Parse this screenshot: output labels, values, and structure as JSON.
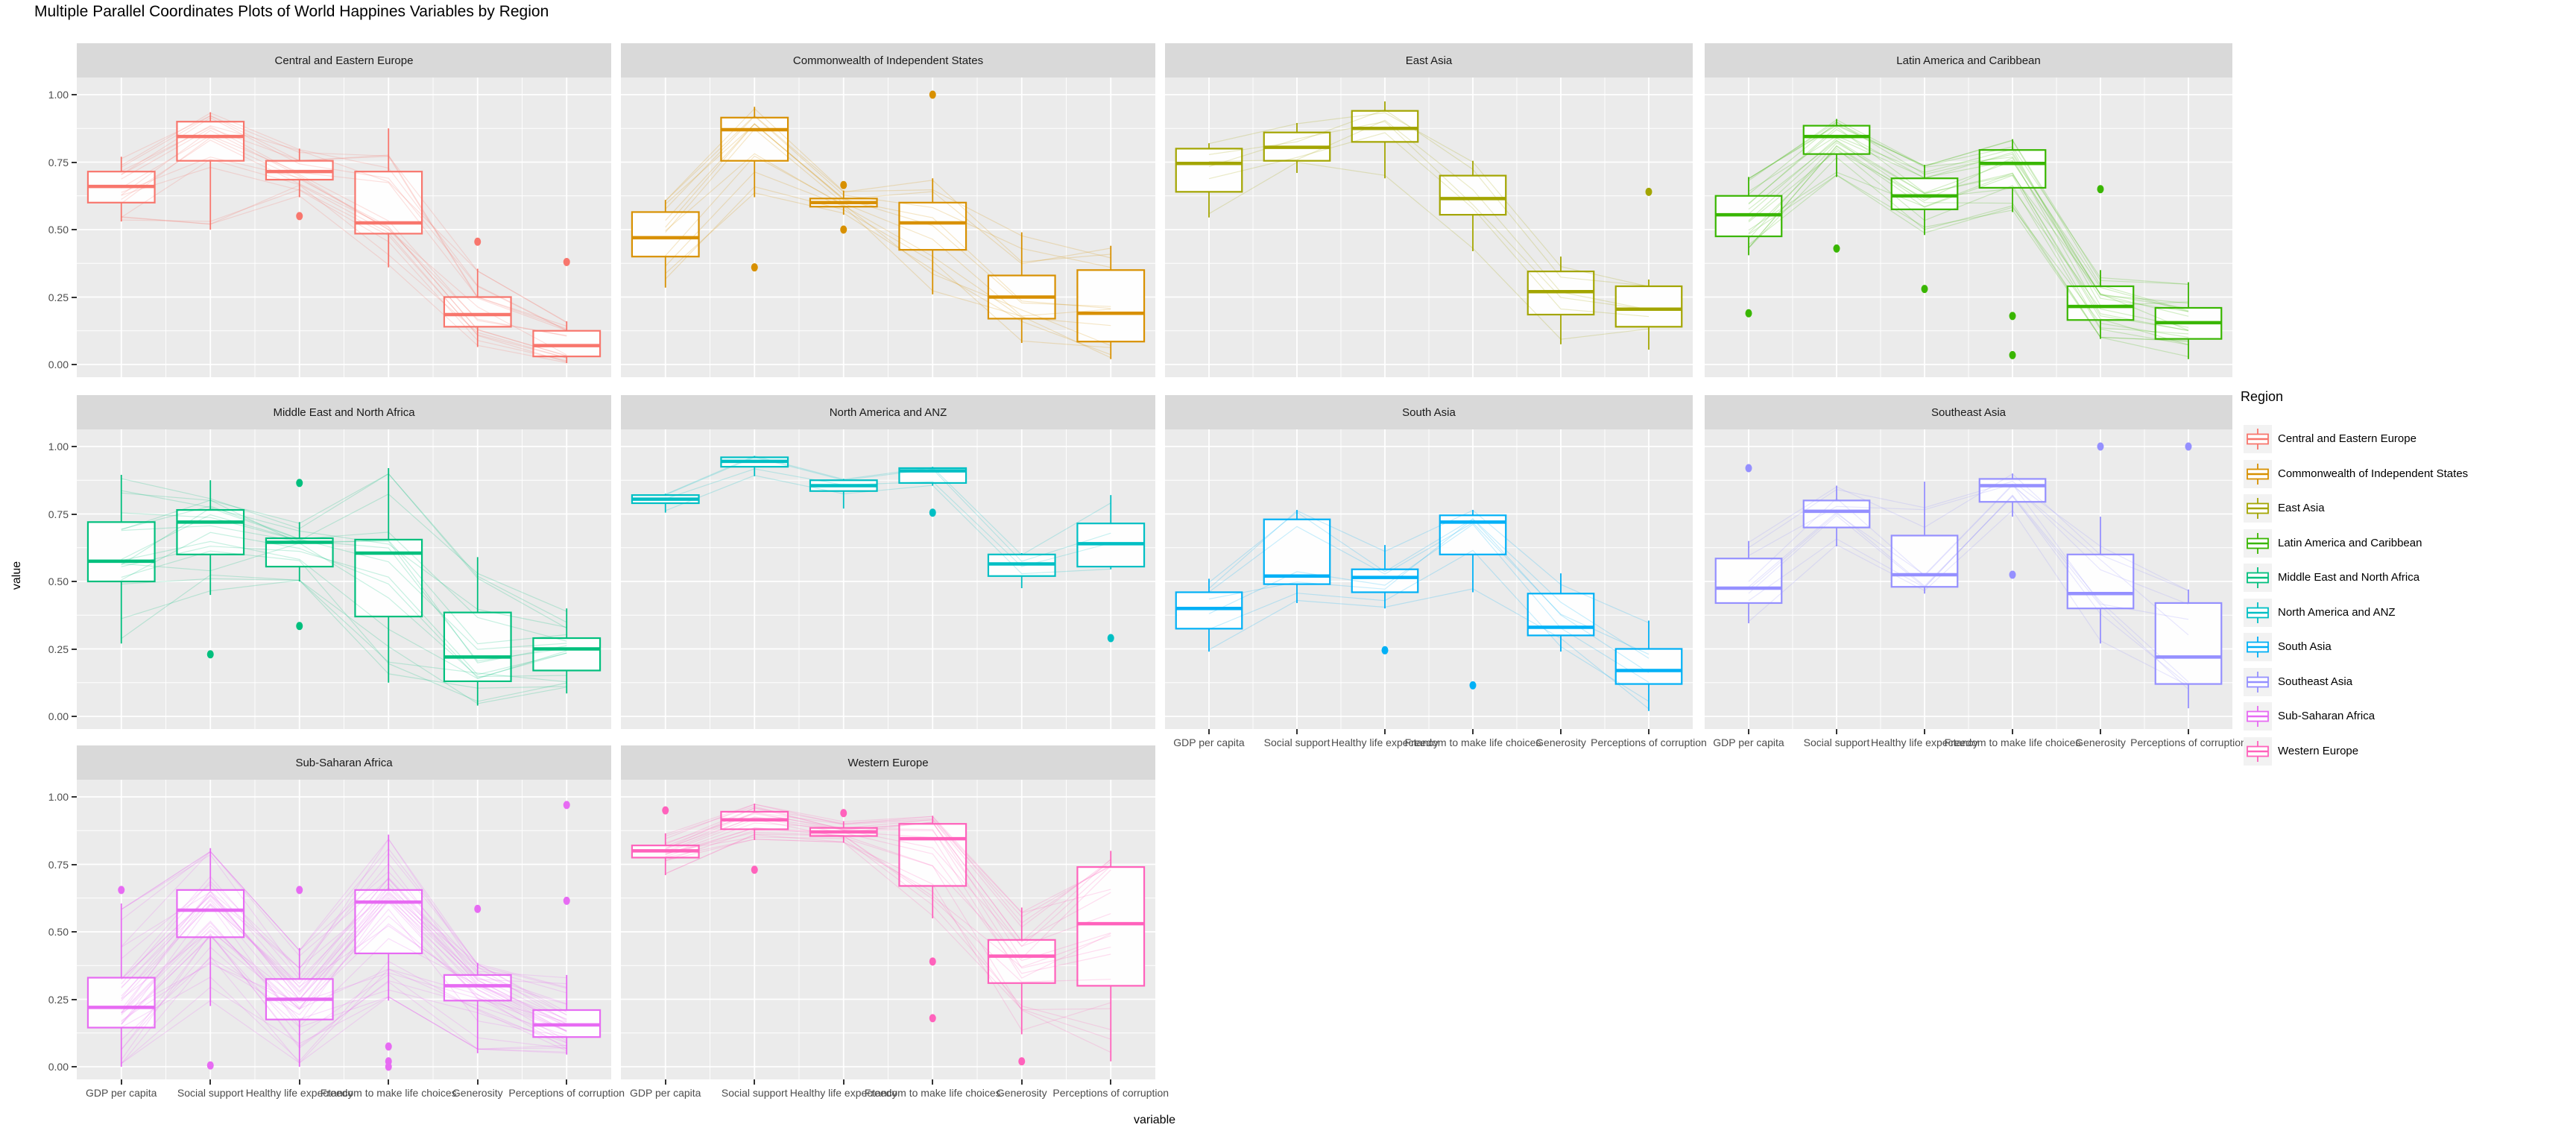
{
  "title": "Multiple Parallel Coordinates Plots of World Happines Variables by Region",
  "axes": {
    "y_title": "value",
    "x_title": "variable",
    "y_tick_labels": [
      "1.00",
      "0.75",
      "0.50",
      "0.25",
      "0.00"
    ],
    "y_tick_values": [
      1.0,
      0.75,
      0.5,
      0.25,
      0.0
    ],
    "x_categories": [
      "GDP per capita",
      "Social support",
      "Healthy life expectancy",
      "Freedom to make life choices",
      "Generosity",
      "Perceptions of corruption"
    ]
  },
  "legend": {
    "title": "Region",
    "entries": [
      {
        "label": "Central and Eastern Europe",
        "color": "#F8766D"
      },
      {
        "label": "Commonwealth of Independent States",
        "color": "#D89000"
      },
      {
        "label": "East Asia",
        "color": "#A3A500"
      },
      {
        "label": "Latin America and Caribbean",
        "color": "#39B600"
      },
      {
        "label": "Middle East and North Africa",
        "color": "#00BF7D"
      },
      {
        "label": "North America and ANZ",
        "color": "#00BFC4"
      },
      {
        "label": "South Asia",
        "color": "#00B0F6"
      },
      {
        "label": "Southeast Asia",
        "color": "#9590FF"
      },
      {
        "label": "Sub-Saharan Africa",
        "color": "#E76BF3"
      },
      {
        "label": "Western Europe",
        "color": "#FF62BC"
      }
    ]
  },
  "chart_data": {
    "type": "boxplot+parallel-coordinates",
    "title": "Multiple Parallel Coordinates Plots of World Happines Variables by Region",
    "xlabel": "variable",
    "ylabel": "value",
    "ylim": [
      0,
      1
    ],
    "grid": true,
    "legend_position": "right",
    "categories": [
      "GDP per capita",
      "Social support",
      "Healthy life expectancy",
      "Freedom to make life choices",
      "Generosity",
      "Perceptions of corruption"
    ],
    "panel_bg": "#EBEBEB",
    "strip_bg": "#D9D9D9",
    "facets": [
      {
        "region": "Central and Eastern Europe",
        "color": "#F8766D",
        "n_lines": 17,
        "boxes": [
          {
            "variable": "GDP per capita",
            "lower": 0.53,
            "q1": 0.6,
            "median": 0.66,
            "q3": 0.715,
            "upper": 0.77,
            "outliers": []
          },
          {
            "variable": "Social support",
            "lower": 0.5,
            "q1": 0.755,
            "median": 0.845,
            "q3": 0.9,
            "upper": 0.935,
            "outliers": []
          },
          {
            "variable": "Healthy life expectancy",
            "lower": 0.62,
            "q1": 0.685,
            "median": 0.715,
            "q3": 0.755,
            "upper": 0.8,
            "outliers": [
              0.55
            ]
          },
          {
            "variable": "Freedom to make life choices",
            "lower": 0.36,
            "q1": 0.485,
            "median": 0.525,
            "q3": 0.715,
            "upper": 0.875,
            "outliers": []
          },
          {
            "variable": "Generosity",
            "lower": 0.065,
            "q1": 0.14,
            "median": 0.185,
            "q3": 0.25,
            "upper": 0.355,
            "outliers": [
              0.455
            ]
          },
          {
            "variable": "Perceptions of corruption",
            "lower": 0.005,
            "q1": 0.03,
            "median": 0.07,
            "q3": 0.125,
            "upper": 0.16,
            "outliers": [
              0.38
            ]
          }
        ]
      },
      {
        "region": "Commonwealth of Independent States",
        "color": "#D89000",
        "n_lines": 12,
        "boxes": [
          {
            "variable": "GDP per capita",
            "lower": 0.285,
            "q1": 0.4,
            "median": 0.47,
            "q3": 0.565,
            "upper": 0.61,
            "outliers": []
          },
          {
            "variable": "Social support",
            "lower": 0.62,
            "q1": 0.755,
            "median": 0.87,
            "q3": 0.915,
            "upper": 0.955,
            "outliers": [
              0.36
            ]
          },
          {
            "variable": "Healthy life expectancy",
            "lower": 0.555,
            "q1": 0.585,
            "median": 0.6,
            "q3": 0.615,
            "upper": 0.645,
            "outliers": [
              0.665,
              0.5
            ]
          },
          {
            "variable": "Freedom to make life choices",
            "lower": 0.26,
            "q1": 0.425,
            "median": 0.525,
            "q3": 0.6,
            "upper": 0.69,
            "outliers": [
              1.0
            ]
          },
          {
            "variable": "Generosity",
            "lower": 0.08,
            "q1": 0.17,
            "median": 0.25,
            "q3": 0.33,
            "upper": 0.49,
            "outliers": []
          },
          {
            "variable": "Perceptions of corruption",
            "lower": 0.02,
            "q1": 0.085,
            "median": 0.19,
            "q3": 0.35,
            "upper": 0.44,
            "outliers": []
          }
        ]
      },
      {
        "region": "East Asia",
        "color": "#A3A500",
        "n_lines": 6,
        "boxes": [
          {
            "variable": "GDP per capita",
            "lower": 0.545,
            "q1": 0.64,
            "median": 0.745,
            "q3": 0.8,
            "upper": 0.82,
            "outliers": []
          },
          {
            "variable": "Social support",
            "lower": 0.71,
            "q1": 0.755,
            "median": 0.805,
            "q3": 0.86,
            "upper": 0.895,
            "outliers": []
          },
          {
            "variable": "Healthy life expectancy",
            "lower": 0.69,
            "q1": 0.825,
            "median": 0.875,
            "q3": 0.94,
            "upper": 0.975,
            "outliers": []
          },
          {
            "variable": "Freedom to make life choices",
            "lower": 0.42,
            "q1": 0.555,
            "median": 0.615,
            "q3": 0.7,
            "upper": 0.755,
            "outliers": []
          },
          {
            "variable": "Generosity",
            "lower": 0.075,
            "q1": 0.185,
            "median": 0.27,
            "q3": 0.345,
            "upper": 0.4,
            "outliers": []
          },
          {
            "variable": "Perceptions of corruption",
            "lower": 0.055,
            "q1": 0.14,
            "median": 0.205,
            "q3": 0.29,
            "upper": 0.315,
            "outliers": [
              0.64
            ]
          }
        ]
      },
      {
        "region": "Latin America and Caribbean",
        "color": "#39B600",
        "n_lines": 20,
        "boxes": [
          {
            "variable": "GDP per capita",
            "lower": 0.405,
            "q1": 0.475,
            "median": 0.555,
            "q3": 0.625,
            "upper": 0.695,
            "outliers": [
              0.19
            ]
          },
          {
            "variable": "Social support",
            "lower": 0.695,
            "q1": 0.78,
            "median": 0.845,
            "q3": 0.885,
            "upper": 0.91,
            "outliers": [
              0.43
            ]
          },
          {
            "variable": "Healthy life expectancy",
            "lower": 0.48,
            "q1": 0.575,
            "median": 0.625,
            "q3": 0.69,
            "upper": 0.74,
            "outliers": [
              0.28
            ]
          },
          {
            "variable": "Freedom to make life choices",
            "lower": 0.565,
            "q1": 0.655,
            "median": 0.745,
            "q3": 0.795,
            "upper": 0.835,
            "outliers": [
              0.18,
              0.035
            ]
          },
          {
            "variable": "Generosity",
            "lower": 0.095,
            "q1": 0.165,
            "median": 0.215,
            "q3": 0.29,
            "upper": 0.35,
            "outliers": [
              0.65
            ]
          },
          {
            "variable": "Perceptions of corruption",
            "lower": 0.02,
            "q1": 0.095,
            "median": 0.155,
            "q3": 0.21,
            "upper": 0.305,
            "outliers": []
          }
        ]
      },
      {
        "region": "Middle East and North Africa",
        "color": "#00BF7D",
        "n_lines": 17,
        "boxes": [
          {
            "variable": "GDP per capita",
            "lower": 0.27,
            "q1": 0.5,
            "median": 0.575,
            "q3": 0.72,
            "upper": 0.895,
            "outliers": []
          },
          {
            "variable": "Social support",
            "lower": 0.45,
            "q1": 0.6,
            "median": 0.72,
            "q3": 0.765,
            "upper": 0.875,
            "outliers": [
              0.23
            ]
          },
          {
            "variable": "Healthy life expectancy",
            "lower": 0.5,
            "q1": 0.555,
            "median": 0.645,
            "q3": 0.66,
            "upper": 0.72,
            "outliers": [
              0.865,
              0.335
            ]
          },
          {
            "variable": "Freedom to make life choices",
            "lower": 0.125,
            "q1": 0.37,
            "median": 0.605,
            "q3": 0.655,
            "upper": 0.92,
            "outliers": []
          },
          {
            "variable": "Generosity",
            "lower": 0.04,
            "q1": 0.13,
            "median": 0.22,
            "q3": 0.385,
            "upper": 0.59,
            "outliers": []
          },
          {
            "variable": "Perceptions of corruption",
            "lower": 0.085,
            "q1": 0.17,
            "median": 0.25,
            "q3": 0.29,
            "upper": 0.4,
            "outliers": []
          }
        ]
      },
      {
        "region": "North America and ANZ",
        "color": "#00BFC4",
        "n_lines": 4,
        "boxes": [
          {
            "variable": "GDP per capita",
            "lower": 0.755,
            "q1": 0.79,
            "median": 0.805,
            "q3": 0.82,
            "upper": 0.825,
            "outliers": []
          },
          {
            "variable": "Social support",
            "lower": 0.89,
            "q1": 0.925,
            "median": 0.945,
            "q3": 0.96,
            "upper": 0.965,
            "outliers": []
          },
          {
            "variable": "Healthy life expectancy",
            "lower": 0.77,
            "q1": 0.835,
            "median": 0.855,
            "q3": 0.875,
            "upper": 0.88,
            "outliers": []
          },
          {
            "variable": "Freedom to make life choices",
            "lower": 0.855,
            "q1": 0.865,
            "median": 0.91,
            "q3": 0.92,
            "upper": 0.925,
            "outliers": [
              0.755
            ]
          },
          {
            "variable": "Generosity",
            "lower": 0.475,
            "q1": 0.52,
            "median": 0.565,
            "q3": 0.6,
            "upper": 0.605,
            "outliers": []
          },
          {
            "variable": "Perceptions of corruption",
            "lower": 0.545,
            "q1": 0.555,
            "median": 0.64,
            "q3": 0.715,
            "upper": 0.82,
            "outliers": [
              0.29
            ]
          }
        ]
      },
      {
        "region": "South Asia",
        "color": "#00B0F6",
        "n_lines": 7,
        "boxes": [
          {
            "variable": "GDP per capita",
            "lower": 0.24,
            "q1": 0.325,
            "median": 0.4,
            "q3": 0.46,
            "upper": 0.51,
            "outliers": []
          },
          {
            "variable": "Social support",
            "lower": 0.42,
            "q1": 0.49,
            "median": 0.52,
            "q3": 0.73,
            "upper": 0.765,
            "outliers": []
          },
          {
            "variable": "Healthy life expectancy",
            "lower": 0.4,
            "q1": 0.46,
            "median": 0.515,
            "q3": 0.545,
            "upper": 0.635,
            "outliers": [
              0.245
            ]
          },
          {
            "variable": "Freedom to make life choices",
            "lower": 0.46,
            "q1": 0.6,
            "median": 0.72,
            "q3": 0.745,
            "upper": 0.765,
            "outliers": [
              0.115
            ]
          },
          {
            "variable": "Generosity",
            "lower": 0.24,
            "q1": 0.3,
            "median": 0.33,
            "q3": 0.455,
            "upper": 0.53,
            "outliers": []
          },
          {
            "variable": "Perceptions of corruption",
            "lower": 0.02,
            "q1": 0.12,
            "median": 0.17,
            "q3": 0.25,
            "upper": 0.355,
            "outliers": []
          }
        ]
      },
      {
        "region": "Southeast Asia",
        "color": "#9590FF",
        "n_lines": 9,
        "boxes": [
          {
            "variable": "GDP per capita",
            "lower": 0.345,
            "q1": 0.42,
            "median": 0.475,
            "q3": 0.585,
            "upper": 0.65,
            "outliers": [
              0.92
            ]
          },
          {
            "variable": "Social support",
            "lower": 0.63,
            "q1": 0.7,
            "median": 0.76,
            "q3": 0.8,
            "upper": 0.855,
            "outliers": []
          },
          {
            "variable": "Healthy life expectancy",
            "lower": 0.455,
            "q1": 0.48,
            "median": 0.525,
            "q3": 0.67,
            "upper": 0.87,
            "outliers": []
          },
          {
            "variable": "Freedom to make life choices",
            "lower": 0.74,
            "q1": 0.795,
            "median": 0.855,
            "q3": 0.88,
            "upper": 0.9,
            "outliers": [
              0.525
            ]
          },
          {
            "variable": "Generosity",
            "lower": 0.27,
            "q1": 0.4,
            "median": 0.455,
            "q3": 0.6,
            "upper": 0.74,
            "outliers": [
              1.0
            ]
          },
          {
            "variable": "Perceptions of corruption",
            "lower": 0.03,
            "q1": 0.12,
            "median": 0.22,
            "q3": 0.42,
            "upper": 0.47,
            "outliers": [
              1.0
            ]
          }
        ]
      },
      {
        "region": "Sub-Saharan Africa",
        "color": "#E76BF3",
        "n_lines": 36,
        "boxes": [
          {
            "variable": "GDP per capita",
            "lower": 0.0,
            "q1": 0.145,
            "median": 0.22,
            "q3": 0.33,
            "upper": 0.605,
            "outliers": [
              0.655
            ]
          },
          {
            "variable": "Social support",
            "lower": 0.225,
            "q1": 0.48,
            "median": 0.58,
            "q3": 0.655,
            "upper": 0.81,
            "outliers": [
              0.005
            ]
          },
          {
            "variable": "Healthy life expectancy",
            "lower": 0.0,
            "q1": 0.175,
            "median": 0.25,
            "q3": 0.325,
            "upper": 0.44,
            "outliers": [
              0.655
            ]
          },
          {
            "variable": "Freedom to make life choices",
            "lower": 0.245,
            "q1": 0.42,
            "median": 0.61,
            "q3": 0.655,
            "upper": 0.86,
            "outliers": [
              0.075,
              0.02,
              0.0
            ]
          },
          {
            "variable": "Generosity",
            "lower": 0.05,
            "q1": 0.245,
            "median": 0.3,
            "q3": 0.34,
            "upper": 0.385,
            "outliers": [
              0.585
            ]
          },
          {
            "variable": "Perceptions of corruption",
            "lower": 0.045,
            "q1": 0.11,
            "median": 0.155,
            "q3": 0.21,
            "upper": 0.34,
            "outliers": [
              0.97,
              0.615
            ]
          }
        ]
      },
      {
        "region": "Western Europe",
        "color": "#FF62BC",
        "n_lines": 21,
        "boxes": [
          {
            "variable": "GDP per capita",
            "lower": 0.71,
            "q1": 0.775,
            "median": 0.8,
            "q3": 0.82,
            "upper": 0.865,
            "outliers": [
              0.95
            ]
          },
          {
            "variable": "Social support",
            "lower": 0.84,
            "q1": 0.88,
            "median": 0.915,
            "q3": 0.945,
            "upper": 0.975,
            "outliers": [
              0.73
            ]
          },
          {
            "variable": "Healthy life expectancy",
            "lower": 0.83,
            "q1": 0.855,
            "median": 0.87,
            "q3": 0.885,
            "upper": 0.91,
            "outliers": [
              0.94
            ]
          },
          {
            "variable": "Freedom to make life choices",
            "lower": 0.55,
            "q1": 0.67,
            "median": 0.845,
            "q3": 0.9,
            "upper": 0.93,
            "outliers": [
              0.39,
              0.18
            ]
          },
          {
            "variable": "Generosity",
            "lower": 0.12,
            "q1": 0.31,
            "median": 0.41,
            "q3": 0.47,
            "upper": 0.59,
            "outliers": [
              0.02
            ]
          },
          {
            "variable": "Perceptions of corruption",
            "lower": 0.02,
            "q1": 0.3,
            "median": 0.53,
            "q3": 0.74,
            "upper": 0.8,
            "outliers": []
          }
        ]
      }
    ]
  }
}
